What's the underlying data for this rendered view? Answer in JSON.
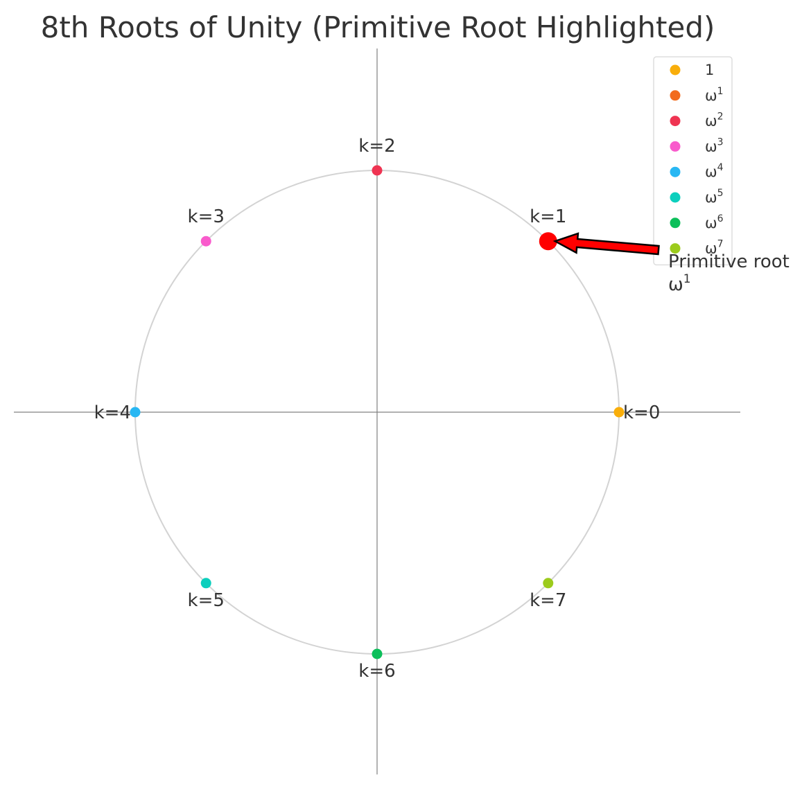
{
  "chart_data": {
    "type": "scatter",
    "title": "8th Roots of Unity (Primitive Root Highlighted)",
    "xlabel": "",
    "ylabel": "",
    "xlim": [
      -1.5,
      1.5
    ],
    "ylim": [
      -1.5,
      1.5
    ],
    "grid": false,
    "legend_position": "top-right",
    "unit_circle": {
      "radius": 1,
      "color": "#d3d3d3"
    },
    "axes_color": "#808080",
    "series": [
      {
        "name": "1",
        "label": "k=0",
        "k": 0,
        "x": 1.0,
        "y": 0.0,
        "color": "#f9ae0b",
        "label_side": "right"
      },
      {
        "name": "ω1",
        "label": "k=1",
        "k": 1,
        "x": 0.7071,
        "y": 0.7071,
        "color": "#f26b1d",
        "label_side": "above"
      },
      {
        "name": "ω2",
        "label": "k=2",
        "k": 2,
        "x": 0.0,
        "y": 1.0,
        "color": "#ef3452",
        "label_side": "above"
      },
      {
        "name": "ω3",
        "label": "k=3",
        "k": 3,
        "x": -0.7071,
        "y": 0.7071,
        "color": "#f95bcc",
        "label_side": "above"
      },
      {
        "name": "ω4",
        "label": "k=4",
        "k": 4,
        "x": -1.0,
        "y": 0.0,
        "color": "#28b7f3",
        "label_side": "left"
      },
      {
        "name": "ω5",
        "label": "k=5",
        "k": 5,
        "x": -0.7071,
        "y": -0.7071,
        "color": "#0ccfbd",
        "label_side": "below"
      },
      {
        "name": "ω6",
        "label": "k=6",
        "k": 6,
        "x": 0.0,
        "y": -1.0,
        "color": "#0cbf5a",
        "label_side": "below"
      },
      {
        "name": "ω7",
        "label": "k=7",
        "k": 7,
        "x": 0.7071,
        "y": -0.7071,
        "color": "#9ccb1c",
        "label_side": "below"
      }
    ],
    "highlight": {
      "k": 1,
      "x": 0.7071,
      "y": 0.7071,
      "color": "#ff0000",
      "annotation_line1": "Primitive root",
      "annotation_base": "ω",
      "annotation_exponent": "1"
    }
  }
}
